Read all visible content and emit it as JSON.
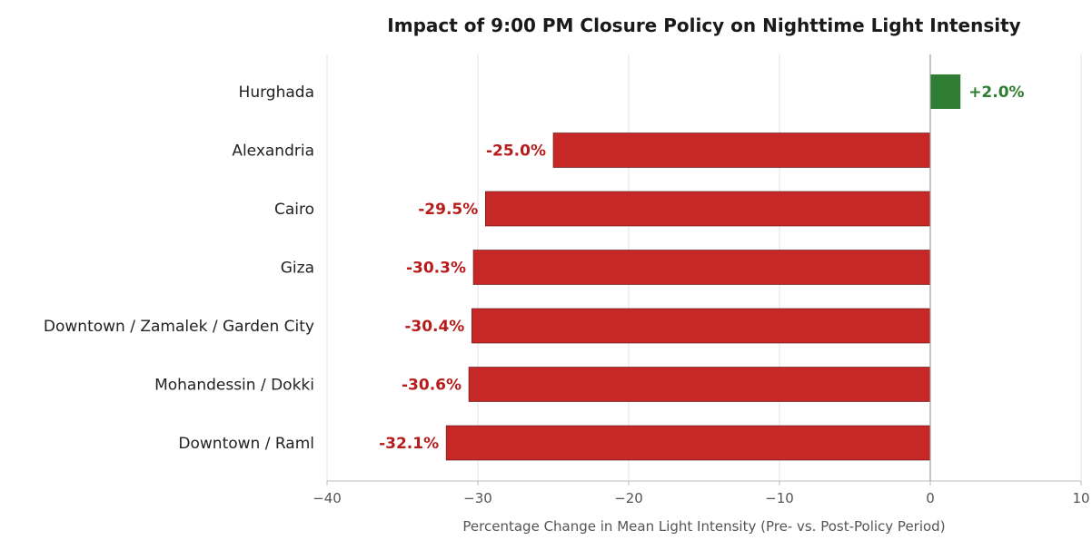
{
  "chart_data": {
    "type": "bar",
    "orientation": "horizontal",
    "title": "Impact of 9:00 PM Closure Policy on Nighttime Light Intensity",
    "xlabel": "Percentage Change in Mean Light Intensity (Pre- vs. Post-Policy Period)",
    "ylabel": "",
    "xlim": [
      -40,
      10
    ],
    "xticks": [
      -40,
      -30,
      -20,
      -10,
      0,
      10
    ],
    "xtick_labels": [
      "−40",
      "−30",
      "−20",
      "−10",
      "0",
      "10"
    ],
    "grid": "vertical",
    "categories": [
      "Hurghada",
      "Alexandria",
      "Cairo",
      "Giza",
      "Downtown / Zamalek / Garden City",
      "Mohandessin / Dokki",
      "Downtown / Raml"
    ],
    "values": [
      2.0,
      -25.0,
      -29.5,
      -30.3,
      -30.4,
      -30.6,
      -32.1
    ],
    "data_labels": [
      "+2.0%",
      "-25.0%",
      "-29.5%",
      "-30.3%",
      "-30.4%",
      "-30.6%",
      "-32.1%"
    ],
    "colors": {
      "positive": "#2e7d32",
      "negative": "#c62828",
      "positive_label": "#2e7d32",
      "negative_label": "#b71c1c"
    }
  }
}
